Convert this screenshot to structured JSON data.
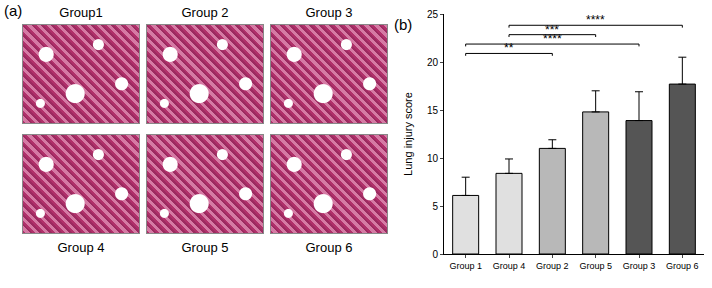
{
  "panel_a": {
    "label": "(a)",
    "top_row": [
      "Group1",
      "Group 2",
      "Group 3"
    ],
    "bottom_row": [
      "Group 4",
      "Group 5",
      "Group 6"
    ]
  },
  "panel_b": {
    "label": "(b)"
  },
  "chart_data": {
    "type": "bar",
    "categories": [
      "Group 1",
      "Group 4",
      "Group 2",
      "Group 5",
      "Group 3",
      "Group 6"
    ],
    "values": [
      6.1,
      8.4,
      11.0,
      14.8,
      13.9,
      17.7
    ],
    "errors": [
      1.9,
      1.5,
      0.9,
      2.2,
      3.0,
      2.8
    ],
    "colors": [
      "#e0e0e0",
      "#e0e0e0",
      "#b8b8b8",
      "#b8b8b8",
      "#555555",
      "#555555"
    ],
    "y_label": "Lung injury score",
    "ylim": [
      0,
      25
    ],
    "yticks": [
      0,
      5,
      10,
      15,
      20,
      25
    ],
    "grid": false,
    "comparisons": [
      {
        "from": "Group 1",
        "to": "Group 2",
        "label": "**"
      },
      {
        "from": "Group 1",
        "to": "Group 3",
        "label": "****"
      },
      {
        "from": "Group 4",
        "to": "Group 5",
        "label": "***"
      },
      {
        "from": "Group 4",
        "to": "Group 6",
        "label": "****"
      }
    ]
  }
}
